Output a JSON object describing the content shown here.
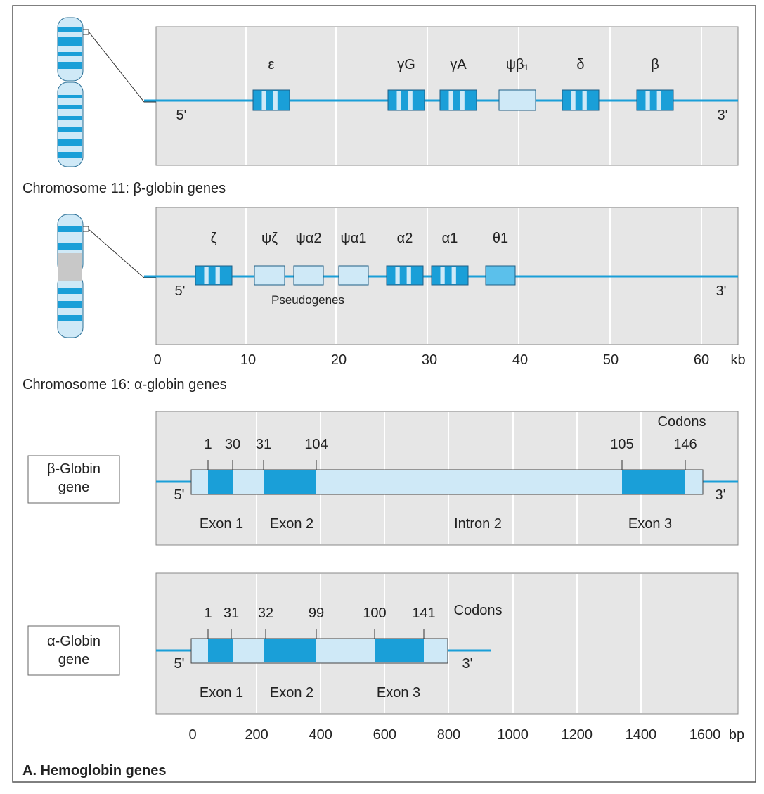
{
  "chromosome_11": {
    "genes": [
      "ε",
      "γG",
      "γA",
      "ψβ₁",
      "δ",
      "β"
    ],
    "five_prime": "5'",
    "three_prime": "3'",
    "caption": "Chromosome 11: β-globin genes"
  },
  "chromosome_16": {
    "genes": [
      "ζ",
      "ψζ",
      "ψα2",
      "ψα1",
      "α2",
      "α1",
      "θ1"
    ],
    "pseudogenes": "Pseudogenes",
    "five_prime": "5'",
    "three_prime": "3'",
    "axis": {
      "ticks": [
        0,
        10,
        20,
        30,
        40,
        50,
        60
      ],
      "unit": "kb"
    },
    "caption": "Chromosome 16: α-globin genes"
  },
  "beta_globin_gene": {
    "label": [
      "β-Globin",
      "gene"
    ],
    "codons_title": "Codons",
    "codons": [
      1,
      30,
      31,
      104,
      105,
      146
    ],
    "regions": [
      "Exon 1",
      "Exon 2",
      "Intron 2",
      "Exon 3"
    ],
    "five_prime": "5'",
    "three_prime": "3'"
  },
  "alpha_globin_gene": {
    "label": [
      "α-Globin",
      "gene"
    ],
    "codons_title": "Codons",
    "codons": [
      1,
      31,
      32,
      99,
      100,
      141
    ],
    "regions": [
      "Exon 1",
      "Exon 2",
      "Exon 3"
    ],
    "five_prime": "5'",
    "three_prime": "3'",
    "axis": {
      "ticks": [
        0,
        200,
        400,
        600,
        800,
        1000,
        1200,
        1400,
        1600
      ],
      "unit": "bp"
    }
  },
  "footer": "A. Hemoglobin genes"
}
